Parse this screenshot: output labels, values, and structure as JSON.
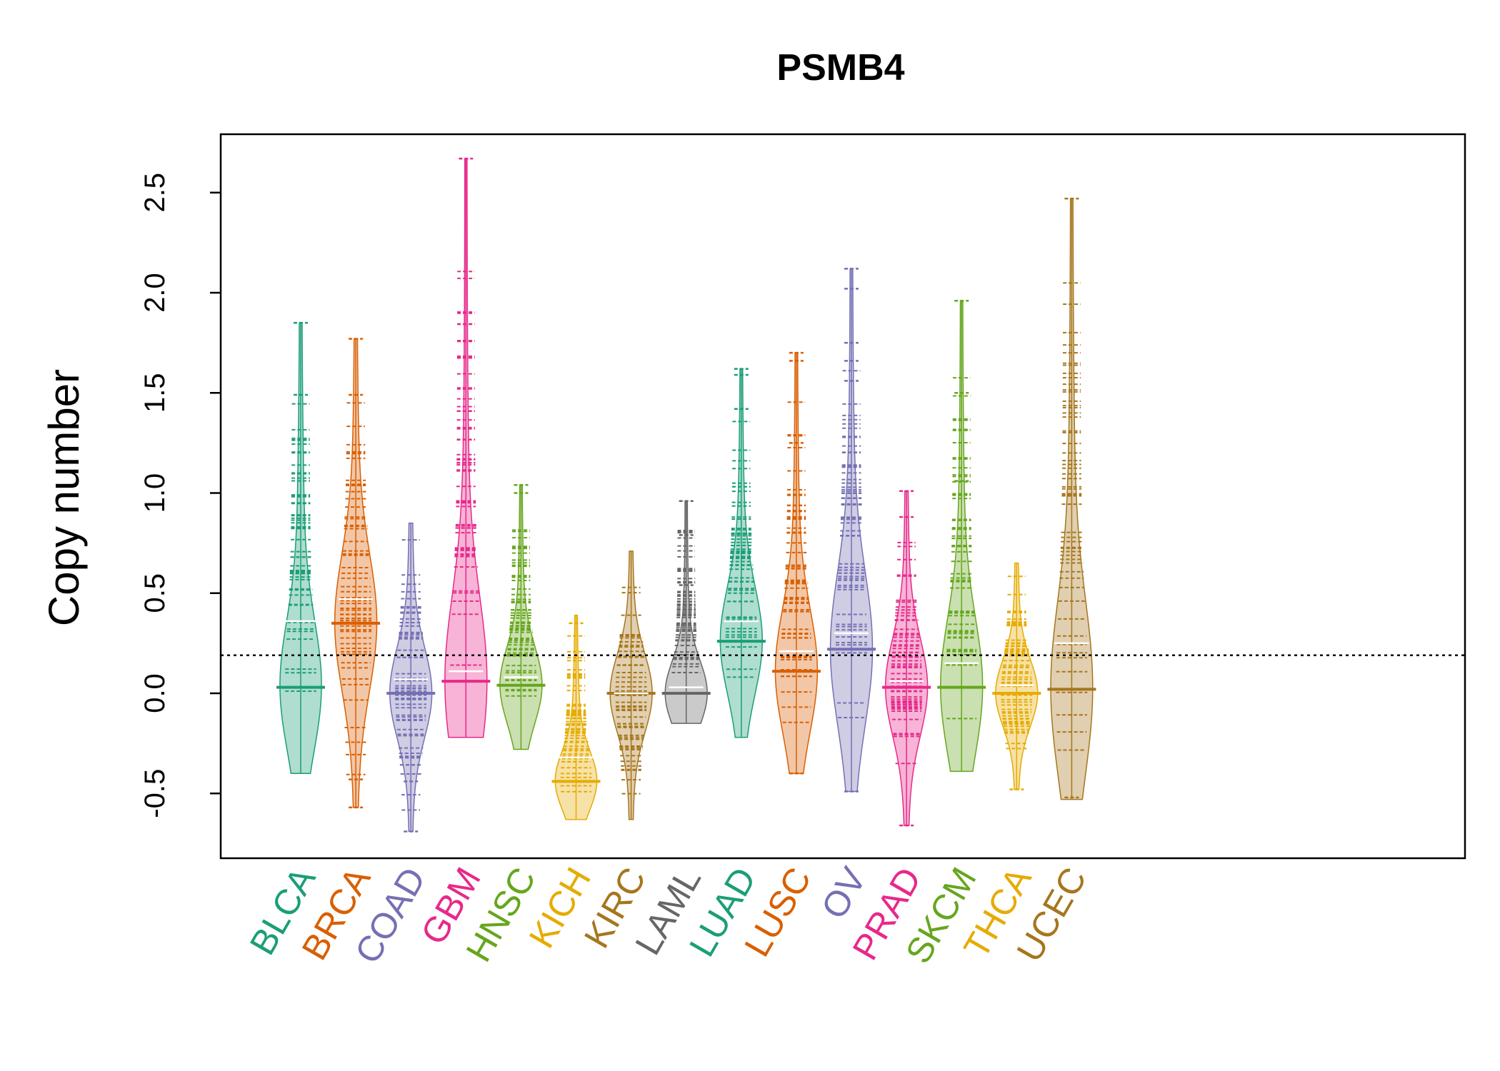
{
  "chart_data": {
    "type": "beanplot",
    "title": "PSMB4",
    "xlabel": "",
    "ylabel": "Copy number",
    "ylim": [
      -0.82,
      2.8
    ],
    "yticks": [
      -0.5,
      0.0,
      0.5,
      1.0,
      1.5,
      2.0,
      2.5
    ],
    "ytick_labels": [
      "-0.5",
      "0.0",
      "0.5",
      "1.0",
      "1.5",
      "2.0",
      "2.5"
    ],
    "reference_line": 0.19,
    "grid": false,
    "legend": "none",
    "categories": [
      "BLCA",
      "BRCA",
      "COAD",
      "GBM",
      "HNSC",
      "KICH",
      "KIRC",
      "LAML",
      "LUAD",
      "LUSC",
      "OV",
      "PRAD",
      "SKCM",
      "THCA",
      "UCEC"
    ],
    "colors": [
      "#1b9e77",
      "#d95f02",
      "#7570b3",
      "#e7298a",
      "#66a61e",
      "#e6ab02",
      "#a6761d",
      "#666666",
      "#1b9e77",
      "#d95f02",
      "#7570b3",
      "#e7298a",
      "#66a61e",
      "#e6ab02",
      "#a6761d"
    ],
    "series": [
      {
        "category": "BLCA",
        "min": -0.4,
        "max": 1.85,
        "median": 0.03,
        "mean": 0.36,
        "outliers": [
          1.85,
          1.49
        ]
      },
      {
        "category": "BRCA",
        "min": -0.57,
        "max": 1.77,
        "median": 0.35,
        "mean": 0.47,
        "outliers": [
          1.77,
          1.49,
          -0.43,
          -0.57
        ]
      },
      {
        "category": "COAD",
        "min": -0.69,
        "max": 0.85,
        "median": 0.0,
        "mean": 0.07,
        "outliers": [
          -0.44,
          -0.69
        ]
      },
      {
        "category": "GBM",
        "min": -0.22,
        "max": 2.67,
        "median": 0.06,
        "mean": 0.11,
        "outliers": [
          2.67
        ]
      },
      {
        "category": "HNSC",
        "min": -0.28,
        "max": 1.04,
        "median": 0.04,
        "mean": 0.08,
        "outliers": [
          1.04,
          1.0
        ]
      },
      {
        "category": "KICH",
        "min": -0.63,
        "max": 0.39,
        "median": -0.44,
        "mean": -0.32,
        "outliers": [
          0.35
        ]
      },
      {
        "category": "KIRC",
        "min": -0.63,
        "max": 0.71,
        "median": 0.0,
        "mean": 0.0,
        "outliers": []
      },
      {
        "category": "LAML",
        "min": -0.15,
        "max": 0.96,
        "median": 0.0,
        "mean": 0.03,
        "outliers": [
          0.96,
          0.79,
          0.54
        ]
      },
      {
        "category": "LUAD",
        "min": -0.22,
        "max": 1.62,
        "median": 0.26,
        "mean": 0.36,
        "outliers": [
          1.62,
          1.59,
          1.42
        ]
      },
      {
        "category": "LUSC",
        "min": -0.4,
        "max": 1.7,
        "median": 0.11,
        "mean": 0.21,
        "outliers": [
          1.7,
          1.66,
          1.25,
          -0.4
        ]
      },
      {
        "category": "OV",
        "min": -0.49,
        "max": 2.12,
        "median": 0.22,
        "mean": 0.3,
        "outliers": [
          2.12,
          2.02,
          1.75,
          1.66,
          1.56,
          -0.49
        ]
      },
      {
        "category": "PRAD",
        "min": -0.66,
        "max": 1.01,
        "median": 0.03,
        "mean": 0.06,
        "outliers": [
          1.01,
          0.88,
          -0.66
        ]
      },
      {
        "category": "SKCM",
        "min": -0.39,
        "max": 1.96,
        "median": 0.03,
        "mean": 0.15,
        "outliers": [
          1.96,
          1.5,
          1.06
        ]
      },
      {
        "category": "THCA",
        "min": -0.48,
        "max": 0.65,
        "median": 0.0,
        "mean": 0.04,
        "outliers": [
          -0.48
        ]
      },
      {
        "category": "UCEC",
        "min": -0.53,
        "max": 2.47,
        "median": 0.02,
        "mean": 0.25,
        "outliers": [
          2.47,
          -0.52
        ]
      }
    ]
  }
}
